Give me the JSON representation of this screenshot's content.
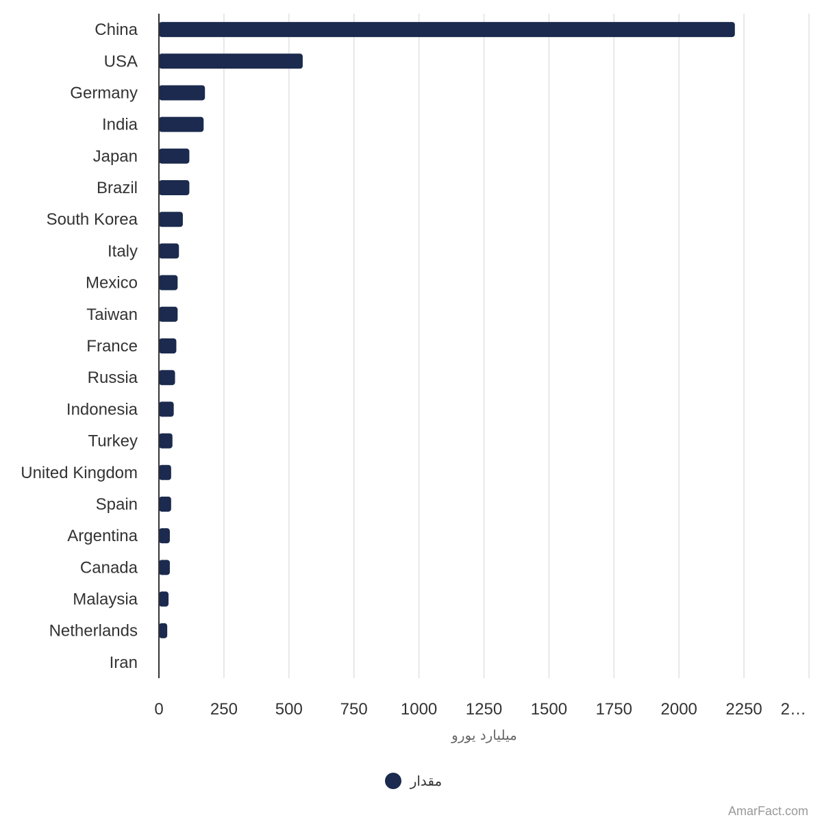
{
  "chart_data": {
    "type": "bar",
    "orientation": "horizontal",
    "categories": [
      "China",
      "USA",
      "Germany",
      "India",
      "Japan",
      "Brazil",
      "South Korea",
      "Italy",
      "Mexico",
      "Taiwan",
      "France",
      "Russia",
      "Indonesia",
      "Turkey",
      "United Kingdom",
      "Spain",
      "Argentina",
      "Canada",
      "Malaysia",
      "Netherlands",
      "Iran"
    ],
    "series": [
      {
        "name": "مقدار",
        "color": "#1b2a4e",
        "values": [
          2215,
          553,
          177,
          172,
          117,
          117,
          92,
          77,
          72,
          72,
          67,
          62,
          57,
          52,
          47,
          47,
          42,
          42,
          37,
          32,
          2
        ]
      }
    ],
    "xlabel": "میلیارد یورو",
    "ylabel": "",
    "xlim": [
      0,
      2500
    ],
    "xticks": [
      "0",
      "250",
      "500",
      "750",
      "1000",
      "1250",
      "1500",
      "1750",
      "2000",
      "2250",
      "2…"
    ],
    "grid": true,
    "legend_position": "bottom"
  },
  "credit": "AmarFact.com",
  "colors": {
    "bar": "#1b2a4e",
    "grid": "#e0e0e0",
    "axis": "#333333"
  }
}
